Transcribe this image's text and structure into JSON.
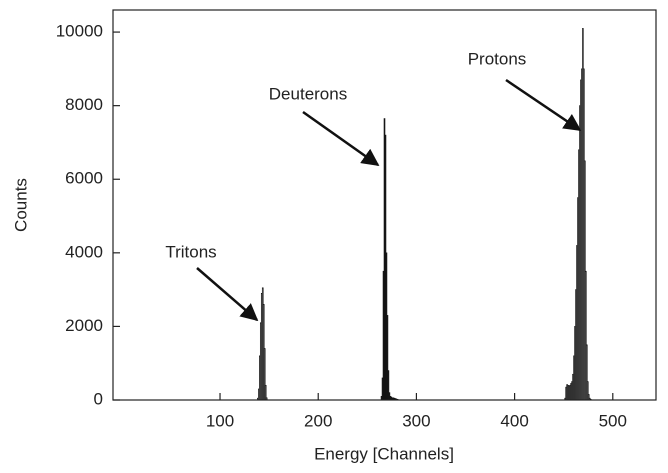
{
  "chart_data": {
    "type": "histogram",
    "xlabel": "Energy [Channels]",
    "ylabel": "Counts",
    "xlim": [
      -9,
      544
    ],
    "ylim": [
      0,
      10600
    ],
    "xticks": [
      100,
      200,
      300,
      400,
      500
    ],
    "yticks": [
      0,
      2000,
      4000,
      6000,
      8000,
      10000
    ],
    "series": [
      {
        "name": "Tritons",
        "color": "#8c8c8c",
        "bins": [
          138,
          139,
          140,
          141,
          142,
          143,
          144,
          145,
          146,
          147,
          148
        ],
        "values": [
          50,
          300,
          1200,
          2100,
          2900,
          3050,
          2600,
          1400,
          400,
          60
        ]
      },
      {
        "name": "Deuterons",
        "color": "#1a1a1a",
        "bins": [
          264,
          265,
          266,
          267,
          268,
          269,
          270,
          271,
          272,
          273,
          274,
          275,
          276,
          277,
          278,
          279,
          280,
          281,
          282
        ],
        "values": [
          100,
          600,
          3500,
          7650,
          7200,
          4000,
          2300,
          800,
          200,
          100,
          80,
          60,
          60,
          50,
          40,
          30,
          20,
          10
        ]
      },
      {
        "name": "Protons",
        "color": "#8c8c8c",
        "bins": [
          451,
          452,
          453,
          454,
          455,
          456,
          457,
          458,
          459,
          460,
          461,
          462,
          463,
          464,
          465,
          466,
          467,
          468,
          469,
          470,
          471,
          472,
          473,
          474,
          475,
          476,
          477,
          478
        ],
        "values": [
          50,
          350,
          420,
          400,
          380,
          400,
          450,
          500,
          700,
          1200,
          2000,
          3000,
          4200,
          5500,
          6800,
          8000,
          8700,
          9000,
          10100,
          9000,
          6500,
          3500,
          1500,
          500,
          150,
          50,
          20
        ]
      }
    ]
  }
}
